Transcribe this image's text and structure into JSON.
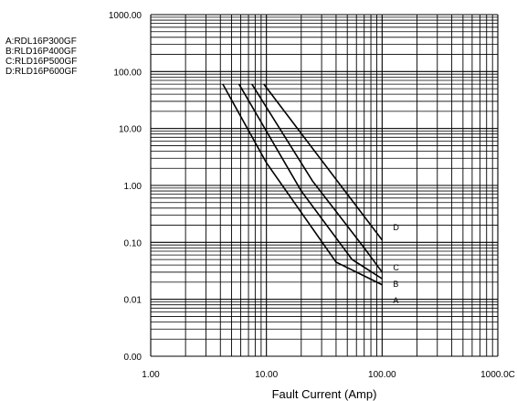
{
  "chart_data": {
    "type": "line",
    "x_scale": "log",
    "y_scale": "log",
    "xlim": [
      1,
      1000
    ],
    "ylim": [
      0.001,
      1000
    ],
    "x_ticks": [
      1,
      10,
      100,
      1000
    ],
    "x_tick_labels": [
      "1.00",
      "10.00",
      "100.00",
      "1000.0C"
    ],
    "y_ticks": [
      0.001,
      0.01,
      0.1,
      1,
      10,
      100,
      1000
    ],
    "y_tick_labels": [
      "0.00",
      "0.01",
      "0.10",
      "1.00",
      "10.00",
      "100.00",
      "1000.00"
    ],
    "xlabel": "Fault Current (Amp)",
    "ylabel": "",
    "grid": true,
    "legend": [
      "A:RDL16P300GF",
      "B:RLD16P400GF",
      "C:RLD16P500GF",
      "D:RLD16P600GF"
    ],
    "series": [
      {
        "label": "A",
        "x": [
          4.2,
          10,
          40,
          100
        ],
        "y": [
          60,
          2.5,
          0.045,
          0.018
        ]
      },
      {
        "label": "B",
        "x": [
          5.8,
          20,
          55,
          100
        ],
        "y": [
          60,
          0.8,
          0.05,
          0.023
        ]
      },
      {
        "label": "C",
        "x": [
          7.5,
          25,
          70,
          100
        ],
        "y": [
          60,
          1.2,
          0.08,
          0.03
        ]
      },
      {
        "label": "D",
        "x": [
          9.5,
          100
        ],
        "y": [
          60,
          0.11
        ]
      }
    ]
  }
}
